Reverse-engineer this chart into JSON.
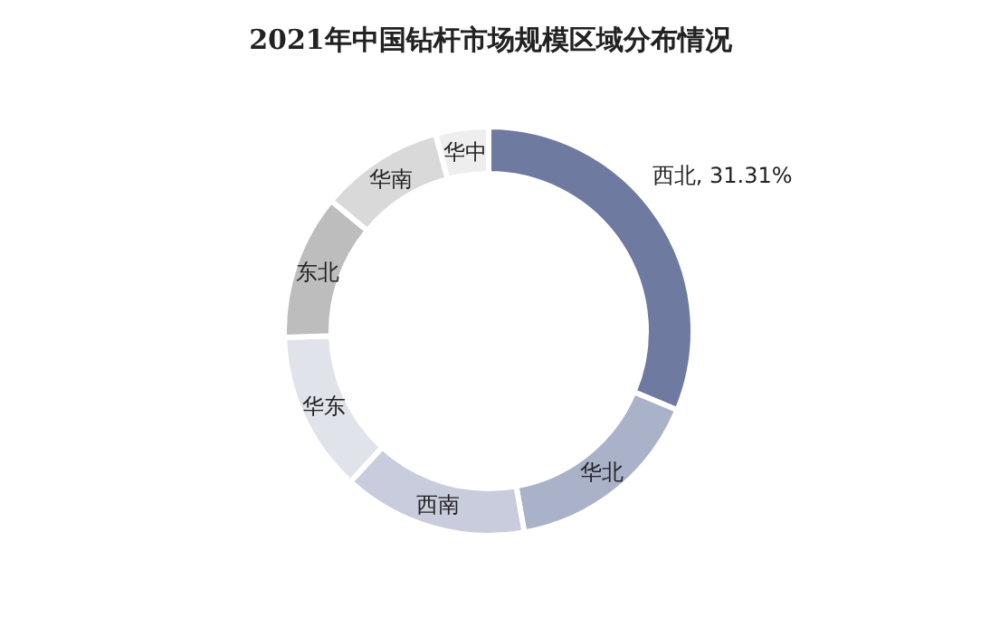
{
  "chart_data": {
    "type": "donut",
    "title": "2021年中国钻杆市场规模区域分布情况",
    "categories": [
      "西北",
      "华北",
      "西南",
      "华东",
      "东北",
      "华南",
      "华中"
    ],
    "values": [
      31.31,
      15.9,
      14.6,
      12.7,
      11.5,
      9.8,
      4.19
    ],
    "colors": [
      "#6f7aa0",
      "#aab2c9",
      "#c8ccdc",
      "#e0e3ea",
      "#bdbdbd",
      "#d9d9d9",
      "#eeeeee"
    ],
    "value_labels": [
      "31.31%",
      null,
      null,
      null,
      null,
      null,
      null
    ]
  }
}
